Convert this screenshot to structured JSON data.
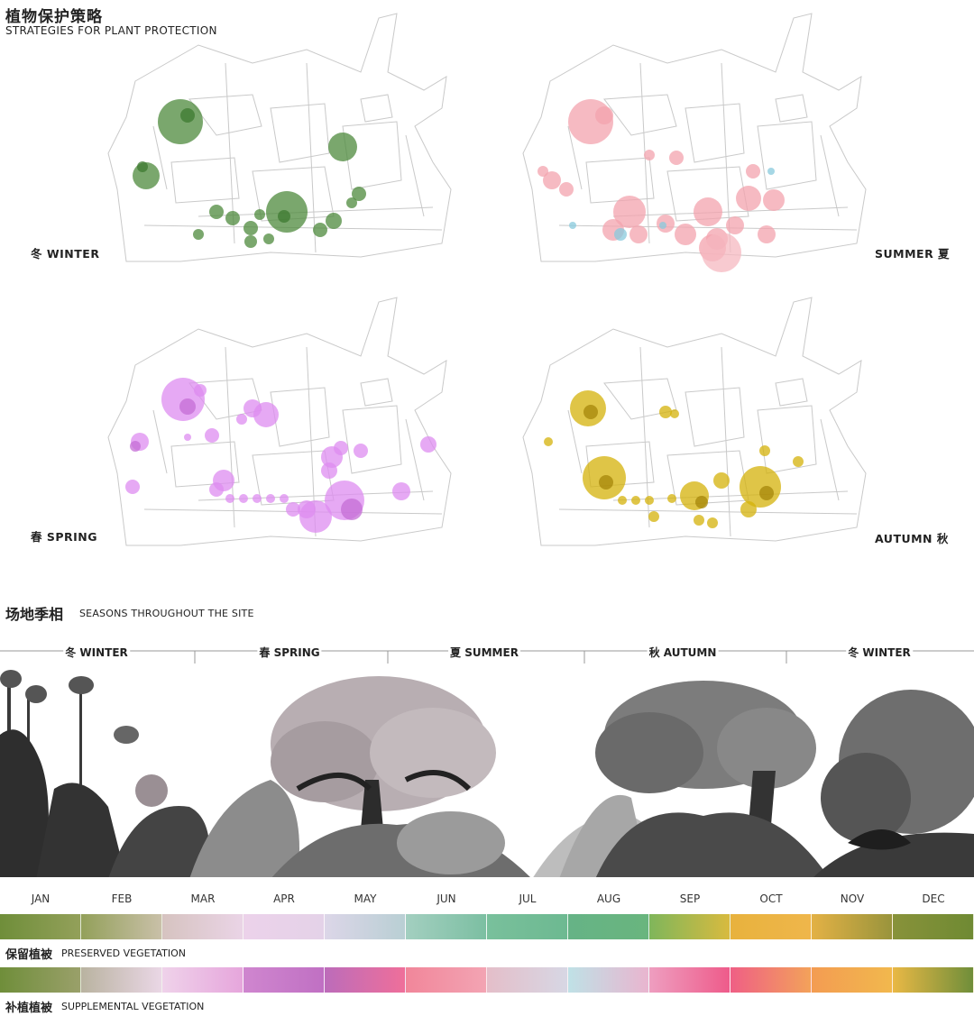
{
  "header": {
    "title_zh": "植物保护策略",
    "title_en": "STRATEGIES FOR PLANT PROTECTION"
  },
  "maps": [
    {
      "id": "winter",
      "label": "冬 WINTER",
      "color": "#4e8a3c"
    },
    {
      "id": "summer",
      "label": "SUMMER 夏",
      "color": "#f3a3ad"
    },
    {
      "id": "spring",
      "label": "春 SPRING",
      "color": "#dd8cf0"
    },
    {
      "id": "autumn",
      "label": "AUTUMN 秋",
      "color": "#d4b20a"
    }
  ],
  "section2": {
    "title_zh": "场地季相",
    "title_en": "SEASONS THROUGHOUT THE SITE"
  },
  "timeline": [
    "冬 WINTER",
    "春 SPRING",
    "夏 SUMMER",
    "秋 AUTUMN",
    "冬 WINTER"
  ],
  "months": [
    "JAN",
    "FEB",
    "MAR",
    "APR",
    "MAY",
    "JUN",
    "JUL",
    "AUG",
    "SEP",
    "OCT",
    "NOV",
    "DEC"
  ],
  "preserved": {
    "label_zh": "保留植被",
    "label_en": "PRESERVED VEGETATION",
    "colors": [
      [
        "#6f8e3a",
        "#93a05a"
      ],
      [
        "#93a05a",
        "#c9c0a8"
      ],
      [
        "#d6c3c0",
        "#ead4e6"
      ],
      [
        "#ecd2ea",
        "#e4d2e8"
      ],
      [
        "#dcd6e8",
        "#b9cfd4"
      ],
      [
        "#a3cfc0",
        "#7cbfa2"
      ],
      [
        "#79c09c",
        "#6db991"
      ],
      [
        "#66b386",
        "#69b57e"
      ],
      [
        "#7fb65b",
        "#d8ba3f"
      ],
      [
        "#e8b23d",
        "#efb64b"
      ],
      [
        "#e3b145",
        "#99943c"
      ],
      [
        "#88923a",
        "#6f8a33"
      ]
    ]
  },
  "supplemental": {
    "label_zh": "补植植被",
    "label_en": "SUPPLEMENTAL VEGETATION",
    "colors": [
      [
        "#6f8e3a",
        "#9aa06a"
      ],
      [
        "#b9b3a0",
        "#ead7e6"
      ],
      [
        "#efd2ea",
        "#e6a6dc"
      ],
      [
        "#cf86cf",
        "#c070c3"
      ],
      [
        "#bc6cba",
        "#ef6f9a"
      ],
      [
        "#f1869a",
        "#f3a4b3"
      ],
      [
        "#e4bec9",
        "#d7d7e4"
      ],
      [
        "#bfe1e6",
        "#e9b5cf"
      ],
      [
        "#ee9ec0",
        "#ee5b8a"
      ],
      [
        "#ef5f85",
        "#f3a25a"
      ],
      [
        "#f39c52",
        "#f2b84d"
      ],
      [
        "#e9b845",
        "#6f8e3a"
      ]
    ]
  }
}
